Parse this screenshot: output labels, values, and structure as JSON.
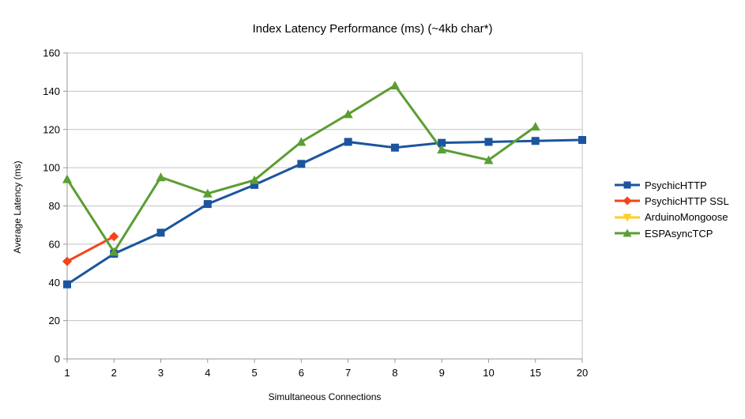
{
  "title": "Index Latency Performance (ms) (~4kb char*)",
  "chart_data": {
    "type": "line",
    "title": "Index Latency Performance (ms) (~4kb char*)",
    "xlabel": "Simultaneous Connections",
    "ylabel": "Average Latency (ms)",
    "categories": [
      "1",
      "2",
      "3",
      "4",
      "5",
      "6",
      "7",
      "8",
      "9",
      "10",
      "15",
      "20"
    ],
    "ylim": [
      0,
      160
    ],
    "ytick_step": 20,
    "grid": true,
    "legend_position": "right",
    "series": [
      {
        "name": "PsychicHTTP",
        "color": "#1c559e",
        "marker": "square",
        "values": [
          39,
          55,
          66,
          81,
          91,
          102,
          113.5,
          110.5,
          113,
          113.5,
          114,
          114.5
        ]
      },
      {
        "name": "PsychicHTTP SSL",
        "color": "#f5431d",
        "marker": "diamond",
        "values": [
          51,
          64,
          null,
          null,
          null,
          null,
          null,
          null,
          null,
          null,
          null,
          null
        ]
      },
      {
        "name": "ArduinoMongoose",
        "color": "#ffd024",
        "marker": "triangle-down",
        "values": [
          null,
          null,
          null,
          null,
          null,
          null,
          null,
          null,
          null,
          null,
          null,
          null
        ]
      },
      {
        "name": "ESPAsyncTCP",
        "color": "#5b9e33",
        "marker": "triangle-up",
        "values": [
          94,
          56,
          95,
          86.5,
          93.5,
          113.5,
          128,
          143,
          109.5,
          104,
          121.5,
          null
        ]
      }
    ],
    "colors": {
      "axis": "#9a9a9a",
      "grid": "#c3c3c3",
      "text": "#000000"
    }
  }
}
